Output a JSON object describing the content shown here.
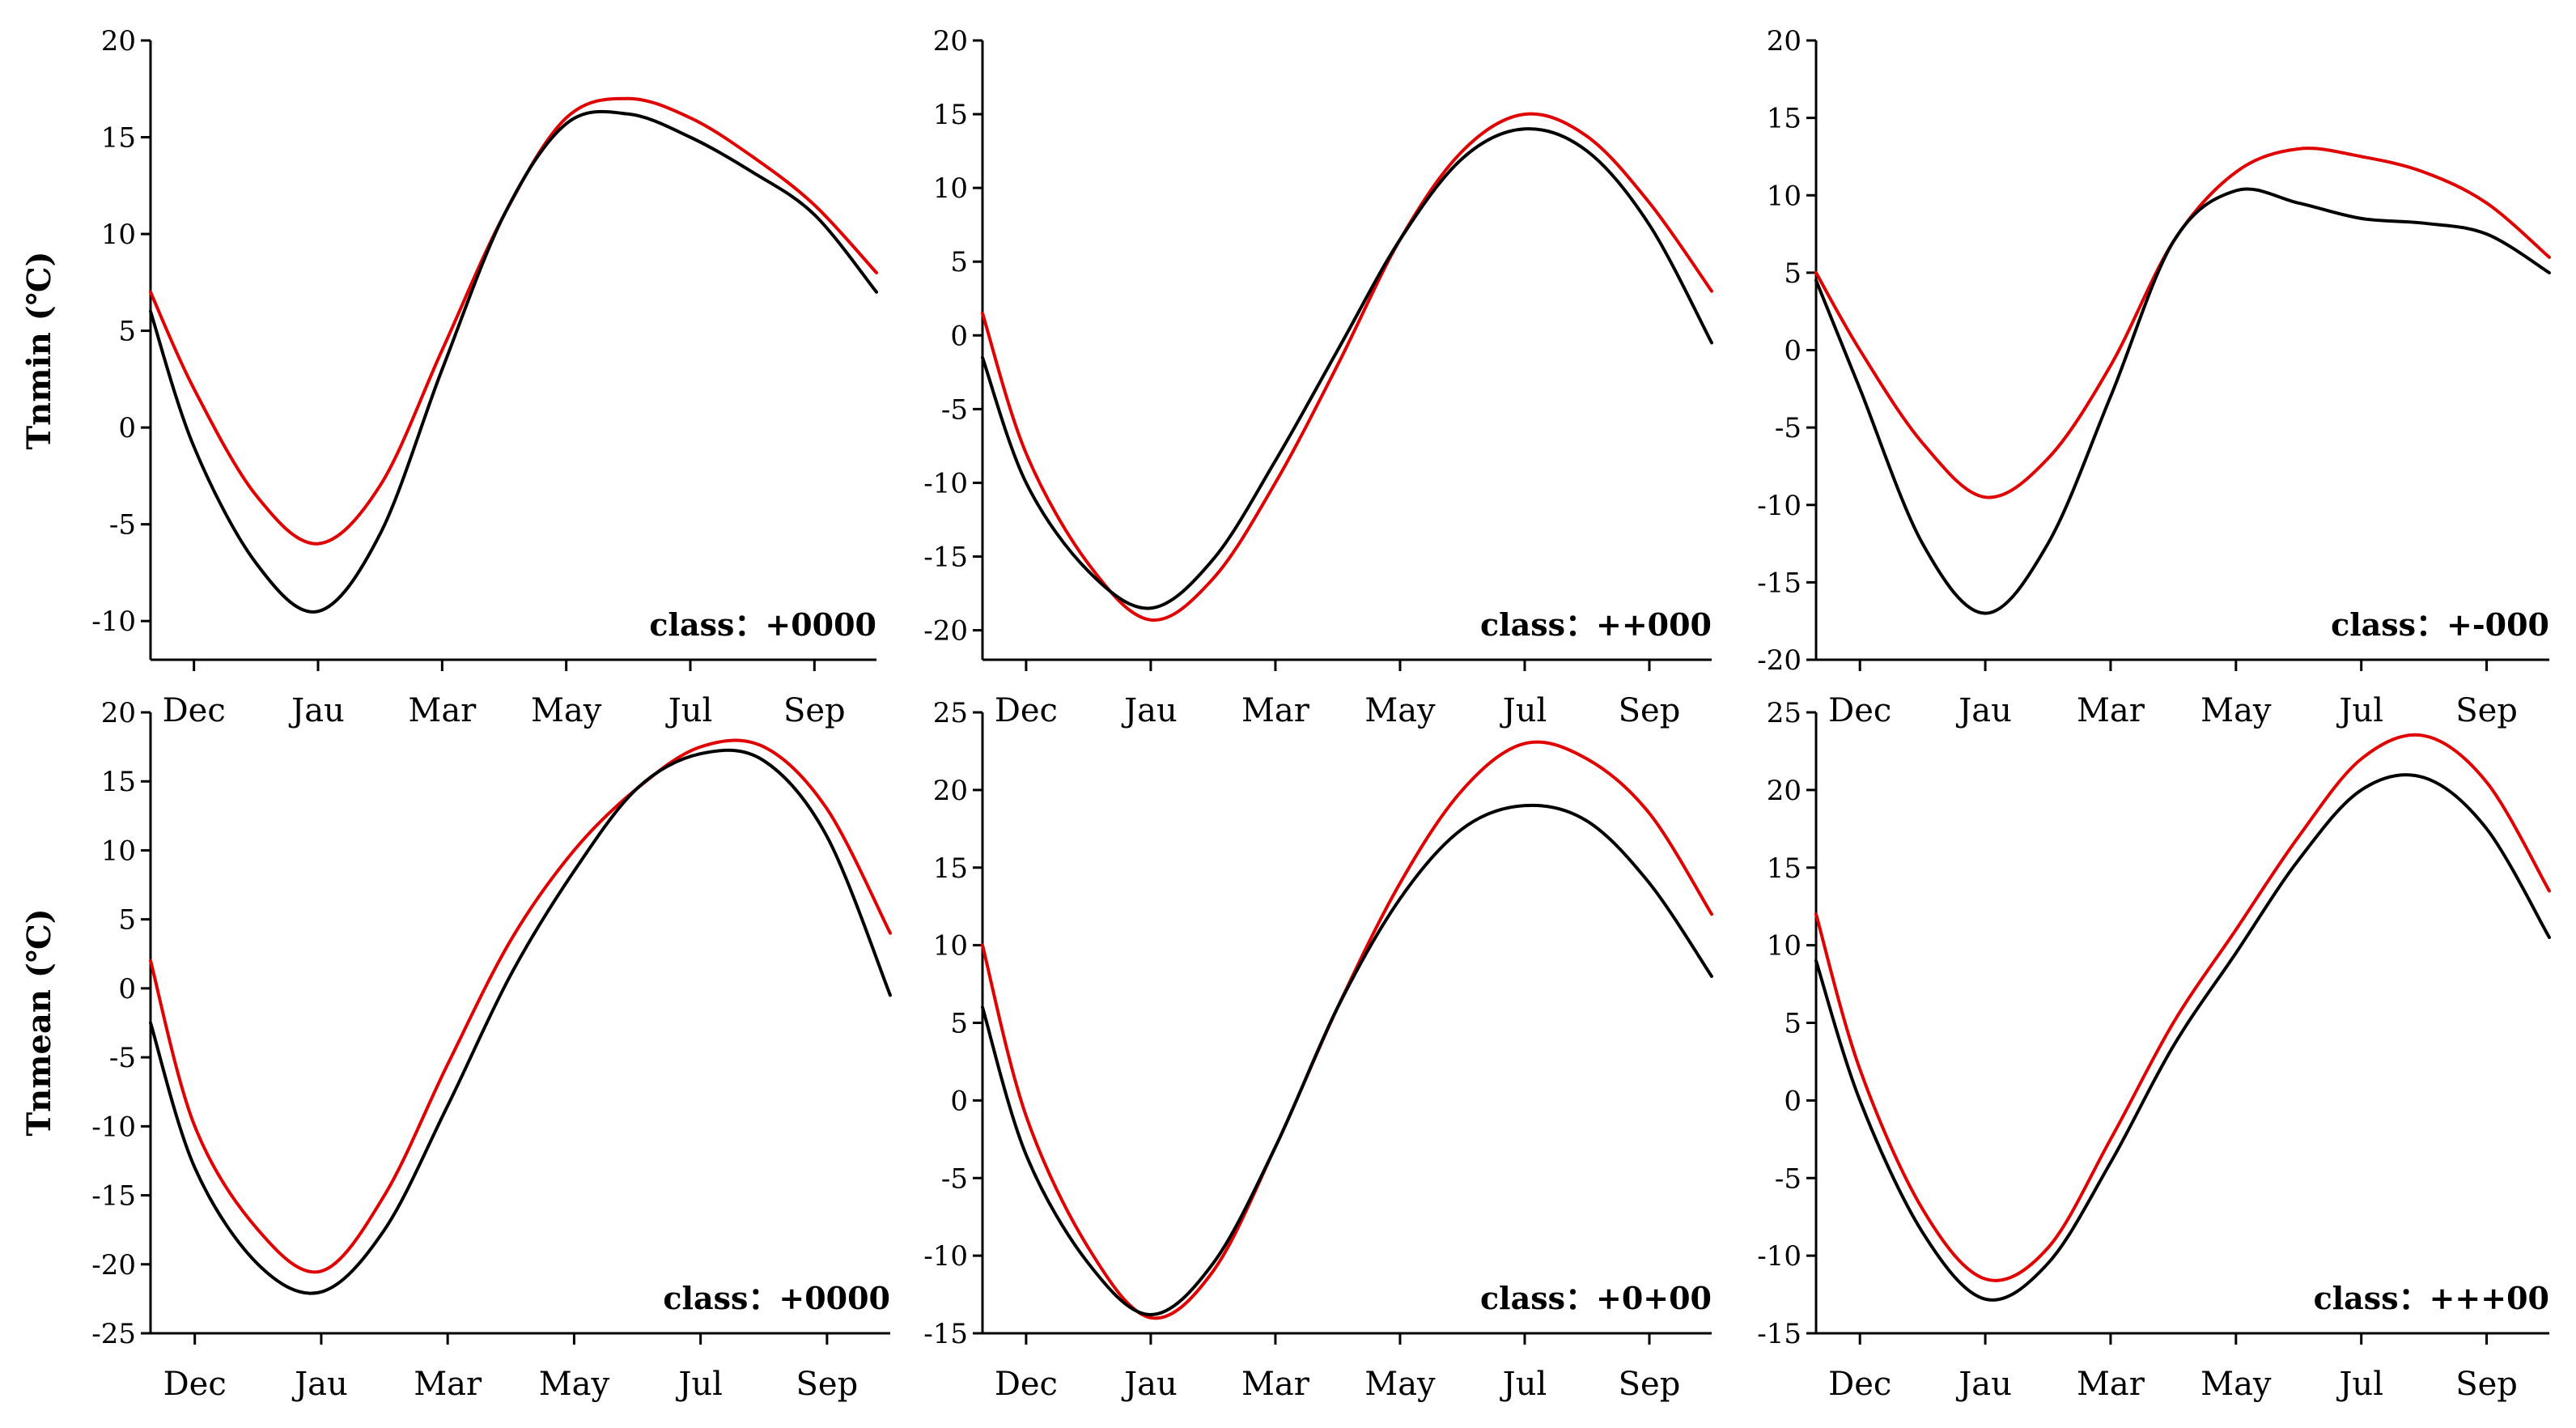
{
  "chart_data": [
    {
      "type": "line",
      "id": "p1",
      "ylabel": "Tnmin (℃)",
      "ylim": [
        -12,
        20
      ],
      "yticks": [
        -10,
        -5,
        0,
        5,
        10,
        15,
        20
      ],
      "yticklabels": [
        "-10",
        "-5",
        "0",
        "5",
        "10",
        "15",
        "20"
      ],
      "xmonths": [
        11,
        13,
        15,
        17,
        19,
        21
      ],
      "xlabels": [
        "Dec",
        "Jau",
        "Mar",
        "May",
        "Jul",
        "Sep"
      ],
      "xlim": [
        10.3,
        22.0
      ],
      "class_label": "class：+0000",
      "series": [
        {
          "name": "red",
          "color": "#e00000",
          "x": [
            10.3,
            11,
            12,
            13,
            14,
            15,
            16,
            17,
            18,
            19,
            20,
            21,
            22
          ],
          "y": [
            7,
            2,
            -3.5,
            -6,
            -3,
            4,
            11,
            16,
            17,
            16,
            14,
            11.5,
            8
          ]
        },
        {
          "name": "black",
          "color": "#000000",
          "x": [
            10.3,
            11,
            12,
            13,
            14,
            15,
            16,
            17,
            18,
            19,
            20,
            21,
            22
          ],
          "y": [
            6,
            -1,
            -7,
            -9.5,
            -5.5,
            3,
            11,
            15.7,
            16.2,
            15,
            13.2,
            11,
            7
          ]
        }
      ]
    },
    {
      "type": "line",
      "id": "p2",
      "ylabel": "",
      "ylim": [
        -22,
        20
      ],
      "yticks": [
        -20,
        -15,
        -10,
        -5,
        0,
        5,
        10,
        15,
        20
      ],
      "yticklabels": [
        "-20",
        "-15",
        "-10",
        "-5",
        "0",
        "5",
        "10",
        "15",
        "20"
      ],
      "xmonths": [
        11,
        13,
        15,
        17,
        19,
        21
      ],
      "xlabels": [
        "Dec",
        "Jau",
        "Mar",
        "May",
        "Jul",
        "Sep"
      ],
      "xlim": [
        10.3,
        22.0
      ],
      "class_label": "class：++000",
      "series": [
        {
          "name": "red",
          "color": "#e00000",
          "x": [
            10.3,
            11,
            12,
            13,
            14,
            15,
            16,
            17,
            18,
            19,
            20,
            21,
            22
          ],
          "y": [
            1.5,
            -8,
            -15.5,
            -19.3,
            -16.5,
            -10,
            -2,
            6.5,
            12.5,
            15,
            13.5,
            9,
            3
          ]
        },
        {
          "name": "black",
          "color": "#000000",
          "x": [
            10.3,
            11,
            12,
            13,
            14,
            15,
            16,
            17,
            18,
            19,
            20,
            21,
            22
          ],
          "y": [
            -1.5,
            -10,
            -16,
            -18.5,
            -15.2,
            -8.5,
            -1,
            6.5,
            12,
            14,
            12.5,
            7.5,
            -0.5
          ]
        }
      ]
    },
    {
      "type": "line",
      "id": "p3",
      "ylabel": "",
      "ylim": [
        -20,
        20
      ],
      "yticks": [
        -20,
        -15,
        -10,
        -5,
        0,
        5,
        10,
        15,
        20
      ],
      "yticklabels": [
        "-20",
        "-15",
        "-10",
        "-5",
        "0",
        "5",
        "10",
        "15",
        "20"
      ],
      "xmonths": [
        11,
        13,
        15,
        17,
        19,
        21
      ],
      "xlabels": [
        "Dec",
        "Jau",
        "Mar",
        "May",
        "Jul",
        "Sep"
      ],
      "xlim": [
        10.3,
        22.0
      ],
      "class_label": "class：+-000",
      "series": [
        {
          "name": "red",
          "color": "#e00000",
          "x": [
            10.3,
            11,
            12,
            13,
            14,
            15,
            16,
            17,
            18,
            19,
            20,
            21,
            22
          ],
          "y": [
            5,
            0,
            -6,
            -9.5,
            -7,
            -1,
            7,
            11.5,
            13,
            12.5,
            11.5,
            9.5,
            6
          ]
        },
        {
          "name": "black",
          "color": "#000000",
          "x": [
            10.3,
            11,
            12,
            13,
            14,
            15,
            16,
            17,
            18,
            19,
            20,
            21,
            22
          ],
          "y": [
            4.5,
            -2.5,
            -12.5,
            -17,
            -12.5,
            -3,
            7,
            10.3,
            9.5,
            8.5,
            8.2,
            7.5,
            5
          ]
        }
      ]
    },
    {
      "type": "line",
      "id": "p4",
      "ylabel": "Tnmean (℃)",
      "ylim": [
        -25,
        20
      ],
      "yticks": [
        -25,
        -20,
        -15,
        -10,
        -5,
        0,
        5,
        10,
        15,
        20
      ],
      "yticklabels": [
        "-25",
        "-20",
        "-15",
        "-10",
        "-5",
        "0",
        "5",
        "10",
        "15",
        "20"
      ],
      "xmonths": [
        11,
        13,
        15,
        17,
        19,
        21
      ],
      "xlabels": [
        "Dec",
        "Jau",
        "Mar",
        "May",
        "Jul",
        "Sep"
      ],
      "xlim": [
        10.3,
        22.0
      ],
      "class_label": "class：+0000",
      "series": [
        {
          "name": "red",
          "color": "#e00000",
          "x": [
            10.3,
            11,
            12,
            13,
            14,
            15,
            16,
            17,
            18,
            19,
            20,
            21,
            22
          ],
          "y": [
            2,
            -10,
            -17.5,
            -20.5,
            -15,
            -5.5,
            3.5,
            10,
            14.5,
            17.5,
            17.5,
            13,
            4
          ]
        },
        {
          "name": "black",
          "color": "#000000",
          "x": [
            10.3,
            11,
            12,
            13,
            14,
            15,
            16,
            17,
            18,
            19,
            20,
            21,
            22
          ],
          "y": [
            -2.5,
            -13,
            -20,
            -22,
            -17.5,
            -8.5,
            1,
            8.5,
            14.5,
            17,
            16.5,
            11,
            -0.5
          ]
        }
      ]
    },
    {
      "type": "line",
      "id": "p5",
      "ylabel": "",
      "ylim": [
        -15,
        25
      ],
      "yticks": [
        -15,
        -10,
        -5,
        0,
        5,
        10,
        15,
        20,
        25
      ],
      "yticklabels": [
        "-15",
        "-10",
        "-5",
        "0",
        "5",
        "10",
        "15",
        "20",
        "25"
      ],
      "xmonths": [
        11,
        13,
        15,
        17,
        19,
        21
      ],
      "xlabels": [
        "Dec",
        "Jau",
        "Mar",
        "May",
        "Jul",
        "Sep"
      ],
      "xlim": [
        10.3,
        22.0
      ],
      "class_label": "class：+0+00",
      "series": [
        {
          "name": "red",
          "color": "#e00000",
          "x": [
            10.3,
            11,
            12,
            13,
            14,
            15,
            16,
            17,
            18,
            19,
            20,
            21,
            22
          ],
          "y": [
            10,
            -1,
            -9.5,
            -14,
            -11,
            -3,
            6,
            14,
            20,
            23,
            22,
            18.5,
            12
          ]
        },
        {
          "name": "black",
          "color": "#000000",
          "x": [
            10.3,
            11,
            12,
            13,
            14,
            15,
            16,
            17,
            18,
            19,
            20,
            21,
            22
          ],
          "y": [
            6,
            -3.5,
            -10.5,
            -13.8,
            -10.5,
            -3,
            6,
            13,
            17.5,
            19,
            18,
            14,
            8
          ]
        }
      ]
    },
    {
      "type": "line",
      "id": "p6",
      "ylabel": "",
      "ylim": [
        -15,
        25
      ],
      "yticks": [
        -15,
        -10,
        -5,
        0,
        5,
        10,
        15,
        20,
        25
      ],
      "yticklabels": [
        "-15",
        "-10",
        "-5",
        "0",
        "5",
        "10",
        "15",
        "20",
        "25"
      ],
      "xmonths": [
        11,
        13,
        15,
        17,
        19,
        21
      ],
      "xlabels": [
        "Dec",
        "Jau",
        "Mar",
        "May",
        "Jul",
        "Sep"
      ],
      "xlim": [
        10.3,
        22.0
      ],
      "class_label": "class：+++00",
      "series": [
        {
          "name": "red",
          "color": "#e00000",
          "x": [
            10.3,
            11,
            12,
            13,
            14,
            15,
            16,
            17,
            18,
            19,
            20,
            21,
            22
          ],
          "y": [
            12,
            2,
            -7,
            -11.5,
            -9.5,
            -2.5,
            5,
            11,
            17,
            22,
            23.5,
            20.5,
            13.5
          ]
        },
        {
          "name": "black",
          "color": "#000000",
          "x": [
            10.3,
            11,
            12,
            13,
            14,
            15,
            16,
            17,
            18,
            19,
            20,
            21,
            22
          ],
          "y": [
            9,
            0,
            -8.5,
            -12.8,
            -10.5,
            -4,
            3.5,
            9.5,
            15.5,
            20,
            20.8,
            17.5,
            10.5
          ]
        }
      ]
    }
  ]
}
